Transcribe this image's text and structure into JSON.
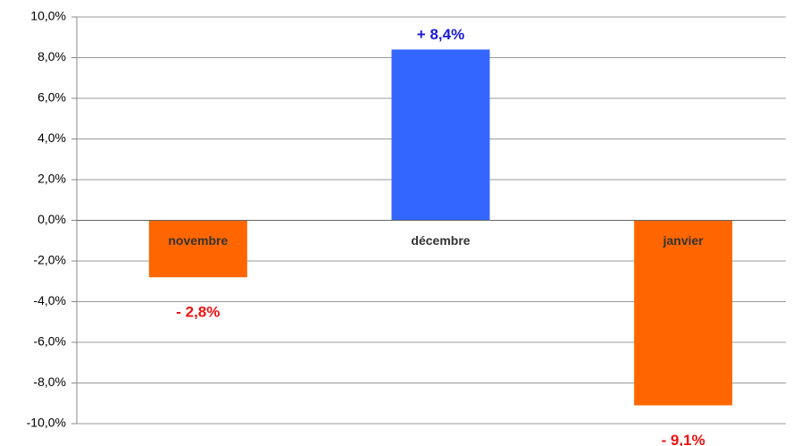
{
  "chart_data": {
    "type": "bar",
    "categories": [
      "novembre",
      "décembre",
      "janvier"
    ],
    "values": [
      -2.8,
      8.4,
      -9.1
    ],
    "value_labels": [
      "- 2,8%",
      "+ 8,4%",
      "- 9,1%"
    ],
    "colors": [
      "#ff6600",
      "#3366ff",
      "#ff6600"
    ],
    "value_label_colors": [
      "#ee1111",
      "#1a1ad6",
      "#ee1111"
    ],
    "ylim": [
      -10,
      10
    ],
    "yticks": [
      {
        "value": -10,
        "label": "-10,0%"
      },
      {
        "value": -8,
        "label": "-8,0%"
      },
      {
        "value": -6,
        "label": "-6,0%"
      },
      {
        "value": -4,
        "label": "-4,0%"
      },
      {
        "value": -2,
        "label": "-2,0%"
      },
      {
        "value": 0,
        "label": "0,0%"
      },
      {
        "value": 2,
        "label": "2,0%"
      },
      {
        "value": 4,
        "label": "4,0%"
      },
      {
        "value": 6,
        "label": "6,0%"
      },
      {
        "value": 8,
        "label": "8,0%"
      },
      {
        "value": 10,
        "label": "10,0%"
      }
    ],
    "grid": true
  }
}
